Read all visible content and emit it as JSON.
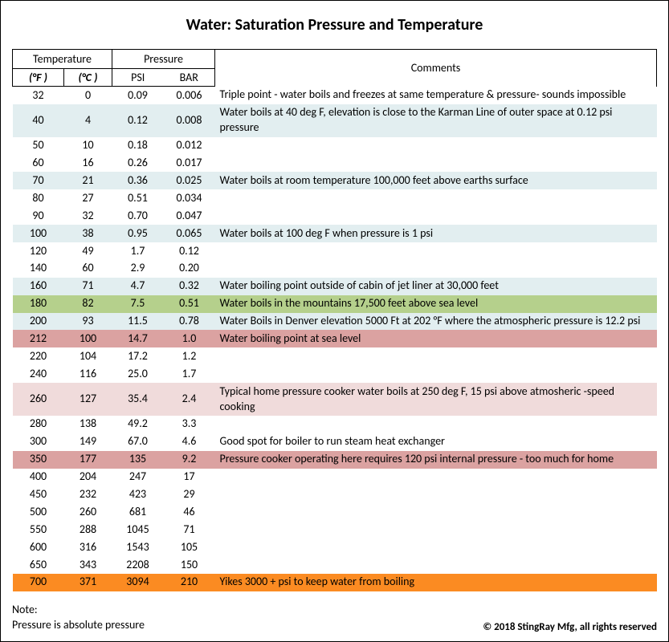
{
  "title": "Water:  Saturation Pressure and Temperature",
  "headers": {
    "temperature": "Temperature",
    "pressure": "Pressure",
    "comments": "Comments",
    "deg_f": "(°F )",
    "deg_c": "(°C )",
    "psi": "PSI",
    "bar": "BAR"
  },
  "row_colors": {
    "none": "#ffffff",
    "blue": "#e2eef0",
    "green": "#b5d08c",
    "pink": "#f0dbdb",
    "rose": "#dba2a1",
    "orange": "#fb8b22"
  },
  "rows": [
    {
      "f": "32",
      "c": "0",
      "psi": "0.09",
      "bar": "0.006",
      "comment": "Triple point - water boils and freezes at same temperature & pressure- sounds impossible",
      "bg": "none"
    },
    {
      "f": "40",
      "c": "4",
      "psi": "0.12",
      "bar": "0.008",
      "comment": " Water boils at 40 deg F, elevation is  close to the Karman Line of outer space  at 0.12 psi pressure",
      "bg": "blue"
    },
    {
      "f": "50",
      "c": "10",
      "psi": "0.18",
      "bar": "0.012",
      "comment": "",
      "bg": "none"
    },
    {
      "f": "60",
      "c": "16",
      "psi": "0.26",
      "bar": "0.017",
      "comment": "",
      "bg": "none"
    },
    {
      "f": "70",
      "c": "21",
      "psi": "0.36",
      "bar": "0.025",
      "comment": "Water boils at room temperature 100,000 feet above earths surface",
      "bg": "blue"
    },
    {
      "f": "80",
      "c": "27",
      "psi": "0.51",
      "bar": "0.034",
      "comment": "",
      "bg": "none"
    },
    {
      "f": "90",
      "c": "32",
      "psi": "0.70",
      "bar": "0.047",
      "comment": "",
      "bg": "none"
    },
    {
      "f": "100",
      "c": "38",
      "psi": "0.95",
      "bar": "0.065",
      "comment": "Water boils at 100 deg F when pressure is 1 psi",
      "bg": "blue"
    },
    {
      "f": "120",
      "c": "49",
      "psi": "1.7",
      "bar": "0.12",
      "comment": "",
      "bg": "none"
    },
    {
      "f": "140",
      "c": "60",
      "psi": "2.9",
      "bar": "0.20",
      "comment": "",
      "bg": "none"
    },
    {
      "f": "160",
      "c": "71",
      "psi": "4.7",
      "bar": "0.32",
      "comment": "Water boiling point outside of cabin of jet liner at 30,000 feet",
      "bg": "blue"
    },
    {
      "f": "180",
      "c": "82",
      "psi": "7.5",
      "bar": "0.51",
      "comment": "Water boils in the mountains 17,500 feet above sea level",
      "bg": "green"
    },
    {
      "f": "200",
      "c": "93",
      "psi": "11.5",
      "bar": "0.78",
      "comment": "Water Boils in Denver elevation 5000 Ft at 202 °F where the atmospheric pressure is 12.2 psi",
      "bg": "blue"
    },
    {
      "f": "212",
      "c": "100",
      "psi": "14.7",
      "bar": "1.0",
      "comment": "Water boiling point at sea level",
      "bg": "rose"
    },
    {
      "f": "220",
      "c": "104",
      "psi": "17.2",
      "bar": "1.2",
      "comment": "",
      "bg": "none"
    },
    {
      "f": "240",
      "c": "116",
      "psi": "25.0",
      "bar": "1.7",
      "comment": "",
      "bg": "none"
    },
    {
      "f": "260",
      "c": "127",
      "psi": "35.4",
      "bar": "2.4",
      "comment": "Typical home pressure cooker water boils at 250 deg F, 15 psi above atmosheric -speed cooking",
      "bg": "pink"
    },
    {
      "f": "280",
      "c": "138",
      "psi": "49.2",
      "bar": "3.3",
      "comment": "",
      "bg": "none"
    },
    {
      "f": "300",
      "c": "149",
      "psi": "67.0",
      "bar": "4.6",
      "comment": "Good spot for boiler to run steam heat exchanger",
      "bg": "none"
    },
    {
      "f": "350",
      "c": "177",
      "psi": "135",
      "bar": "9.2",
      "comment": "Pressure cooker operating here requires 120 psi internal pressure - too much for home",
      "bg": "rose"
    },
    {
      "f": "400",
      "c": "204",
      "psi": "247",
      "bar": "17",
      "comment": "",
      "bg": "none"
    },
    {
      "f": "450",
      "c": "232",
      "psi": "423",
      "bar": "29",
      "comment": "",
      "bg": "none"
    },
    {
      "f": "500",
      "c": "260",
      "psi": "681",
      "bar": "46",
      "comment": "",
      "bg": "none"
    },
    {
      "f": "550",
      "c": "288",
      "psi": "1045",
      "bar": "71",
      "comment": "",
      "bg": "none"
    },
    {
      "f": "600",
      "c": "316",
      "psi": "1543",
      "bar": "105",
      "comment": "",
      "bg": "none"
    },
    {
      "f": "650",
      "c": "343",
      "psi": "2208",
      "bar": "150",
      "comment": "",
      "bg": "none"
    },
    {
      "f": "700",
      "c": "371",
      "psi": "3094",
      "bar": "210",
      "comment": "Yikes 3000 + psi to keep water from boiling",
      "bg": "orange"
    }
  ],
  "footer": {
    "note_label": "Note:",
    "note_text": "Pressure is absolute pressure",
    "copyright": "© 2018 StingRay Mfg, all rights reserved"
  }
}
